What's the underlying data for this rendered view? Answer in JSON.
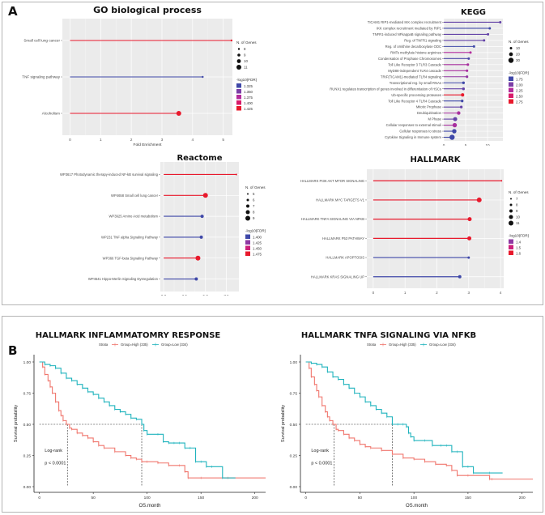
{
  "panels": {
    "a_label": "A",
    "b_label": "B"
  },
  "colors": {
    "panel_bg": "#ebebeb",
    "grid": "#ffffff",
    "km_high": "#f0766d",
    "km_low": "#1fb3bd",
    "fdr_scale": [
      "#3f48a8",
      "#7b3ea6",
      "#b32b9c",
      "#d81b6a",
      "#e8192c"
    ]
  },
  "chart_data": [
    {
      "id": "go",
      "type": "lollipop",
      "title": "GO biological process",
      "xlabel": "Fold Enrichment",
      "xlim": [
        -0.25,
        5.3
      ],
      "xticks": [
        0,
        1,
        2,
        3,
        4,
        5
      ],
      "categories": [
        "Small cell lung cancer",
        "TNF signaling pathway",
        "Alcoholism"
      ],
      "values": [
        5.27,
        4.33,
        3.55
      ],
      "n_genes": [
        8,
        8,
        11
      ],
      "neg_log10_fdr": [
        1.425,
        1.325,
        1.425
      ],
      "size_legend": {
        "title": "N. of Genes",
        "values": [
          8,
          9,
          10,
          11
        ]
      },
      "color_legend": {
        "title": "-log10(FDR)",
        "values": [
          "1.325",
          "1.350",
          "1.375",
          "1.400",
          "1.425"
        ],
        "range": [
          1.325,
          1.425
        ]
      }
    },
    {
      "id": "kegg",
      "type": "lollipop",
      "title": "KEGG",
      "xlabel": "Fold Enrichment",
      "xlim": [
        0,
        13.5
      ],
      "xticks": [
        0,
        5,
        10
      ],
      "categories": [
        "TICAM1 RIP1-mediated IKK complex recruitment",
        "IKK complex recruitment mediated by RIP1",
        "TNFR1-induced NFkappaB signaling pathway",
        "Reg. of TNFR1 signaling",
        "Reg. of ornithine decarboxylase ODC",
        "RMTs methylate histone arginines",
        "Condensation of Prophase Chromosomes",
        "Toll Like Receptor 3 TLR3 Cascade",
        "MyD88-independent TLR4 cascade",
        "TRIF(TICAM1)-mediated TLR4 signaling",
        "Transcriptional reg. by small RNAs",
        "RUNX1 regulates transcription of genes involved in differentiation of HSCs",
        "Ub-specific processing proteases",
        "Toll Like Receptor 4 TLR4 Cascade",
        "Mitotic Prophase",
        "Deubiquitination",
        "M Phase",
        "Cellular responses to external stimuli",
        "Cellular responses to stress",
        "Cytokine Signaling in Immune system"
      ],
      "values": [
        12.9,
        10.5,
        10.1,
        9.2,
        6.9,
        6.1,
        5.7,
        5.5,
        5.3,
        5.3,
        4.5,
        4.5,
        4.3,
        4.2,
        4.0,
        3.4,
        2.6,
        2.5,
        2.4,
        1.9
      ],
      "n_genes": [
        6,
        7,
        8,
        8,
        9,
        10,
        10,
        11,
        11,
        11,
        12,
        12,
        16,
        12,
        12,
        18,
        22,
        24,
        24,
        30
      ],
      "neg_log10_fdr": [
        1.9,
        1.75,
        1.9,
        1.9,
        1.75,
        2.25,
        1.8,
        2.2,
        2.2,
        2.1,
        1.75,
        1.9,
        2.75,
        1.75,
        1.9,
        2.2,
        1.9,
        2.2,
        1.75,
        1.75
      ],
      "size_legend": {
        "title": "N. of Genes",
        "values": [
          10,
          20,
          30
        ]
      },
      "color_legend": {
        "title": "-log10(FDR)",
        "values": [
          "1.75",
          "2.00",
          "2.25",
          "2.50",
          "2.75"
        ],
        "range": [
          1.75,
          2.75
        ]
      }
    },
    {
      "id": "reactome",
      "type": "lollipop",
      "title": "Reactome",
      "xlabel": "Fold Enrichment",
      "xlim": [
        -0.4,
        9.0
      ],
      "xticks": [
        0.0,
        2.5,
        5.0,
        7.5
      ],
      "xtick_labels": [
        "0.0",
        "2.5",
        "5.0",
        "7.5"
      ],
      "categories": [
        "WP3617 Photodynamic therapy-induced NF-kB survival signaling",
        "WP4658 Small cell lung cancer",
        "WP3925 Amino Acid metabolism",
        "WP231 TNF alpha Signaling Pathway",
        "WP366 TGF-beta Signaling Pathway",
        "WP4541 Hippo-Merlin Signaling Dysregulation"
      ],
      "values": [
        8.7,
        5.0,
        4.6,
        4.5,
        4.1,
        3.9
      ],
      "n_genes": [
        5,
        9,
        7,
        7,
        9,
        7
      ],
      "neg_log10_fdr": [
        1.475,
        1.475,
        1.4,
        1.4,
        1.475,
        1.4
      ],
      "size_legend": {
        "title": "N. of Genes",
        "values": [
          5,
          6,
          7,
          8,
          9
        ]
      },
      "color_legend": {
        "title": "-log10(FDR)",
        "values": [
          "1.400",
          "1.425",
          "1.450",
          "1.475"
        ],
        "range": [
          1.4,
          1.475
        ]
      }
    },
    {
      "id": "hallmark",
      "type": "lollipop",
      "title": "HALLMARK",
      "xlabel": "Fold Enrichment",
      "xlim": [
        -0.2,
        4.1
      ],
      "xticks": [
        0,
        1,
        2,
        3,
        4
      ],
      "categories": [
        "HALLMARK PI3K AKT MTOR SIGNALING",
        "HALLMARK MYC TARGETS V1",
        "HALLMARK TNFA SIGNALING VIA NFKB",
        "HALLMARK P53 PATHWAY",
        "HALLMARK APOPTOSIS",
        "HALLMARK KRAS SIGNALING UP"
      ],
      "values": [
        4.03,
        3.33,
        3.03,
        3.02,
        3.0,
        2.72
      ],
      "n_genes": [
        7,
        11,
        10,
        10,
        8,
        9
      ],
      "neg_log10_fdr": [
        1.6,
        1.6,
        1.6,
        1.6,
        1.3,
        1.3
      ],
      "size_legend": {
        "title": "N. of Genes",
        "values": [
          7,
          8,
          9,
          10,
          11
        ]
      },
      "color_legend": {
        "title": "-log10(FDR)",
        "values": [
          "1.4",
          "1.5",
          "1.6"
        ],
        "range": [
          1.3,
          1.6
        ]
      }
    },
    {
      "id": "km1",
      "type": "line",
      "subtype": "kaplan-meier",
      "title": "HALLMARK INFLAMMATOMRY RESPONSE",
      "xlabel": "OS.month",
      "ylabel": "Survival probability",
      "xlim": [
        -5,
        210
      ],
      "ylim": [
        0,
        1.0
      ],
      "xticks": [
        0,
        50,
        100,
        150,
        200
      ],
      "yticks": [
        "0.00",
        "0.25",
        "0.50",
        "0.75",
        "1.00"
      ],
      "legend": {
        "title": "Strata",
        "position": "top",
        "entries": [
          "Group=High (335)",
          "Group=Low (334)"
        ]
      },
      "annotation": [
        "Log-rank",
        "p < 0.0001"
      ],
      "median_survival": {
        "high": 26,
        "low": 95
      },
      "series": [
        {
          "name": "Group=High (335)",
          "x": [
            0,
            3,
            5,
            8,
            10,
            12,
            15,
            18,
            20,
            22,
            25,
            28,
            30,
            35,
            40,
            45,
            50,
            55,
            60,
            70,
            80,
            85,
            90,
            95,
            100,
            110,
            120,
            130,
            135,
            138,
            150,
            175,
            210
          ],
          "y": [
            1.0,
            0.96,
            0.9,
            0.85,
            0.8,
            0.75,
            0.68,
            0.61,
            0.57,
            0.53,
            0.5,
            0.47,
            0.46,
            0.43,
            0.41,
            0.39,
            0.36,
            0.33,
            0.31,
            0.28,
            0.25,
            0.23,
            0.22,
            0.2,
            0.2,
            0.19,
            0.17,
            0.17,
            0.12,
            0.07,
            0.07,
            0.07,
            0.07
          ]
        },
        {
          "name": "Group=Low (334)",
          "x": [
            0,
            5,
            10,
            15,
            20,
            25,
            30,
            35,
            40,
            45,
            50,
            55,
            60,
            65,
            70,
            75,
            80,
            85,
            90,
            95,
            97,
            100,
            110,
            115,
            120,
            125,
            130,
            135,
            140,
            145,
            150,
            155,
            160,
            170,
            182
          ],
          "y": [
            1.0,
            0.98,
            0.97,
            0.95,
            0.91,
            0.87,
            0.85,
            0.82,
            0.79,
            0.76,
            0.74,
            0.71,
            0.68,
            0.65,
            0.62,
            0.6,
            0.58,
            0.55,
            0.54,
            0.5,
            0.45,
            0.42,
            0.42,
            0.36,
            0.35,
            0.35,
            0.35,
            0.31,
            0.31,
            0.2,
            0.2,
            0.16,
            0.16,
            0.07,
            0.07
          ]
        }
      ]
    },
    {
      "id": "km2",
      "type": "line",
      "subtype": "kaplan-meier",
      "title": "HALLMARK TNFA SIGNALING VIA NFKB",
      "xlabel": "OS.month",
      "ylabel": "Survival probability",
      "xlim": [
        -5,
        210
      ],
      "ylim": [
        0,
        1.0
      ],
      "xticks": [
        0,
        50,
        100,
        150,
        200
      ],
      "yticks": [
        "0.00",
        "0.25",
        "0.50",
        "0.75",
        "1.00"
      ],
      "legend": {
        "title": "Strata",
        "position": "top",
        "entries": [
          "Group=High (335)",
          "Group=Low (334)"
        ]
      },
      "annotation": [
        "Log-rank",
        "p < 0.0001"
      ],
      "median_survival": {
        "high": 26,
        "low": 80
      },
      "series": [
        {
          "name": "Group=High (335)",
          "x": [
            0,
            3,
            5,
            8,
            10,
            12,
            15,
            18,
            20,
            22,
            25,
            28,
            30,
            35,
            40,
            45,
            50,
            55,
            60,
            70,
            80,
            90,
            100,
            110,
            120,
            130,
            135,
            140,
            150,
            170,
            172,
            210
          ],
          "y": [
            1.0,
            0.95,
            0.88,
            0.82,
            0.77,
            0.72,
            0.65,
            0.6,
            0.56,
            0.53,
            0.5,
            0.46,
            0.45,
            0.42,
            0.39,
            0.37,
            0.34,
            0.32,
            0.31,
            0.29,
            0.26,
            0.23,
            0.22,
            0.2,
            0.18,
            0.17,
            0.13,
            0.09,
            0.09,
            0.06,
            0.06,
            0.06
          ]
        },
        {
          "name": "Group=Low (334)",
          "x": [
            0,
            5,
            10,
            15,
            20,
            25,
            30,
            35,
            40,
            45,
            50,
            55,
            60,
            65,
            70,
            75,
            80,
            85,
            90,
            93,
            95,
            97,
            100,
            110,
            117,
            125,
            130,
            135,
            140,
            145,
            150,
            155,
            170,
            182
          ],
          "y": [
            1.0,
            0.99,
            0.98,
            0.96,
            0.92,
            0.88,
            0.86,
            0.82,
            0.79,
            0.75,
            0.72,
            0.68,
            0.65,
            0.62,
            0.59,
            0.56,
            0.5,
            0.5,
            0.5,
            0.48,
            0.43,
            0.4,
            0.37,
            0.37,
            0.33,
            0.33,
            0.33,
            0.28,
            0.28,
            0.16,
            0.16,
            0.11,
            0.11,
            0.11
          ]
        }
      ]
    }
  ]
}
